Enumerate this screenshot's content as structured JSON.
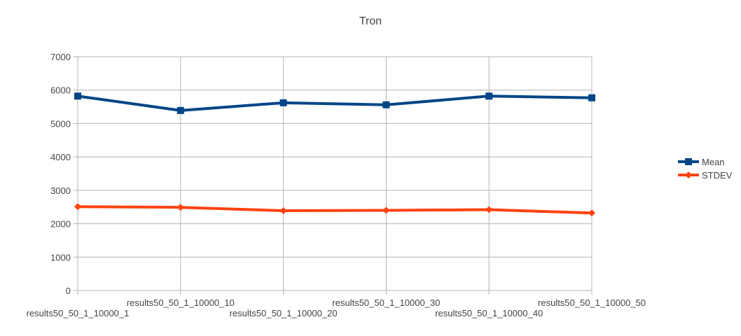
{
  "chart_data": {
    "type": "line",
    "title": "Tron",
    "xlabel": "",
    "ylabel": "",
    "categories": [
      "results50_50_1_10000_1",
      "results50_50_1_10000_10",
      "results50_50_1_10000_20",
      "results50_50_1_10000_30",
      "results50_50_1_10000_40",
      "results50_50_1_10000_50"
    ],
    "series": [
      {
        "name": "Mean",
        "values": [
          5820,
          5390,
          5620,
          5560,
          5820,
          5770
        ],
        "color": "#004586",
        "marker": "square"
      },
      {
        "name": "STDEV",
        "values": [
          2510,
          2490,
          2390,
          2400,
          2420,
          2320
        ],
        "color": "#ff420e",
        "marker": "diamond"
      }
    ],
    "ylim": [
      0,
      7000
    ],
    "yticks": [
      0,
      1000,
      2000,
      3000,
      4000,
      5000,
      6000,
      7000
    ],
    "grid": true,
    "legend_position": "right"
  }
}
